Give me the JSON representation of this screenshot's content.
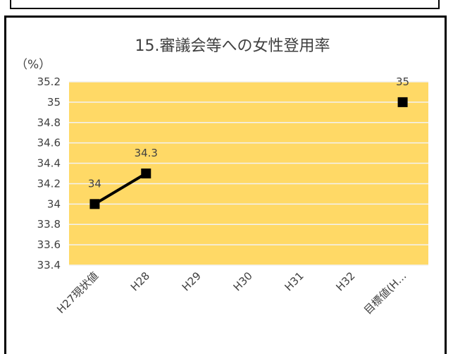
{
  "chart_data": {
    "type": "line",
    "title": "15.審議会等への女性登用率",
    "y_unit_label": "（%）",
    "categories": [
      "H27現状値",
      "H28",
      "H29",
      "H30",
      "H31",
      "H32",
      "目標値(H…"
    ],
    "series": [
      {
        "values": [
          34,
          34.3,
          null,
          null,
          null,
          null,
          null
        ]
      },
      {
        "values": [
          null,
          null,
          null,
          null,
          null,
          null,
          35
        ]
      }
    ],
    "data_labels": [
      "34",
      "34.3",
      "35"
    ],
    "ylim": [
      33.4,
      35.2
    ],
    "y_ticks": [
      33.4,
      33.6,
      33.8,
      34,
      34.2,
      34.4,
      34.6,
      34.8,
      35,
      35.2
    ],
    "y_tick_labels": [
      "33.4",
      "33.6",
      "33.8",
      "34",
      "34.2",
      "34.4",
      "34.6",
      "34.8",
      "35",
      "35.2"
    ],
    "grid": true,
    "legend": "none",
    "colors": {
      "plot_background": "#FFD966",
      "series": "#000000",
      "gridline": "#F2F2F2",
      "text": "#404040"
    }
  }
}
